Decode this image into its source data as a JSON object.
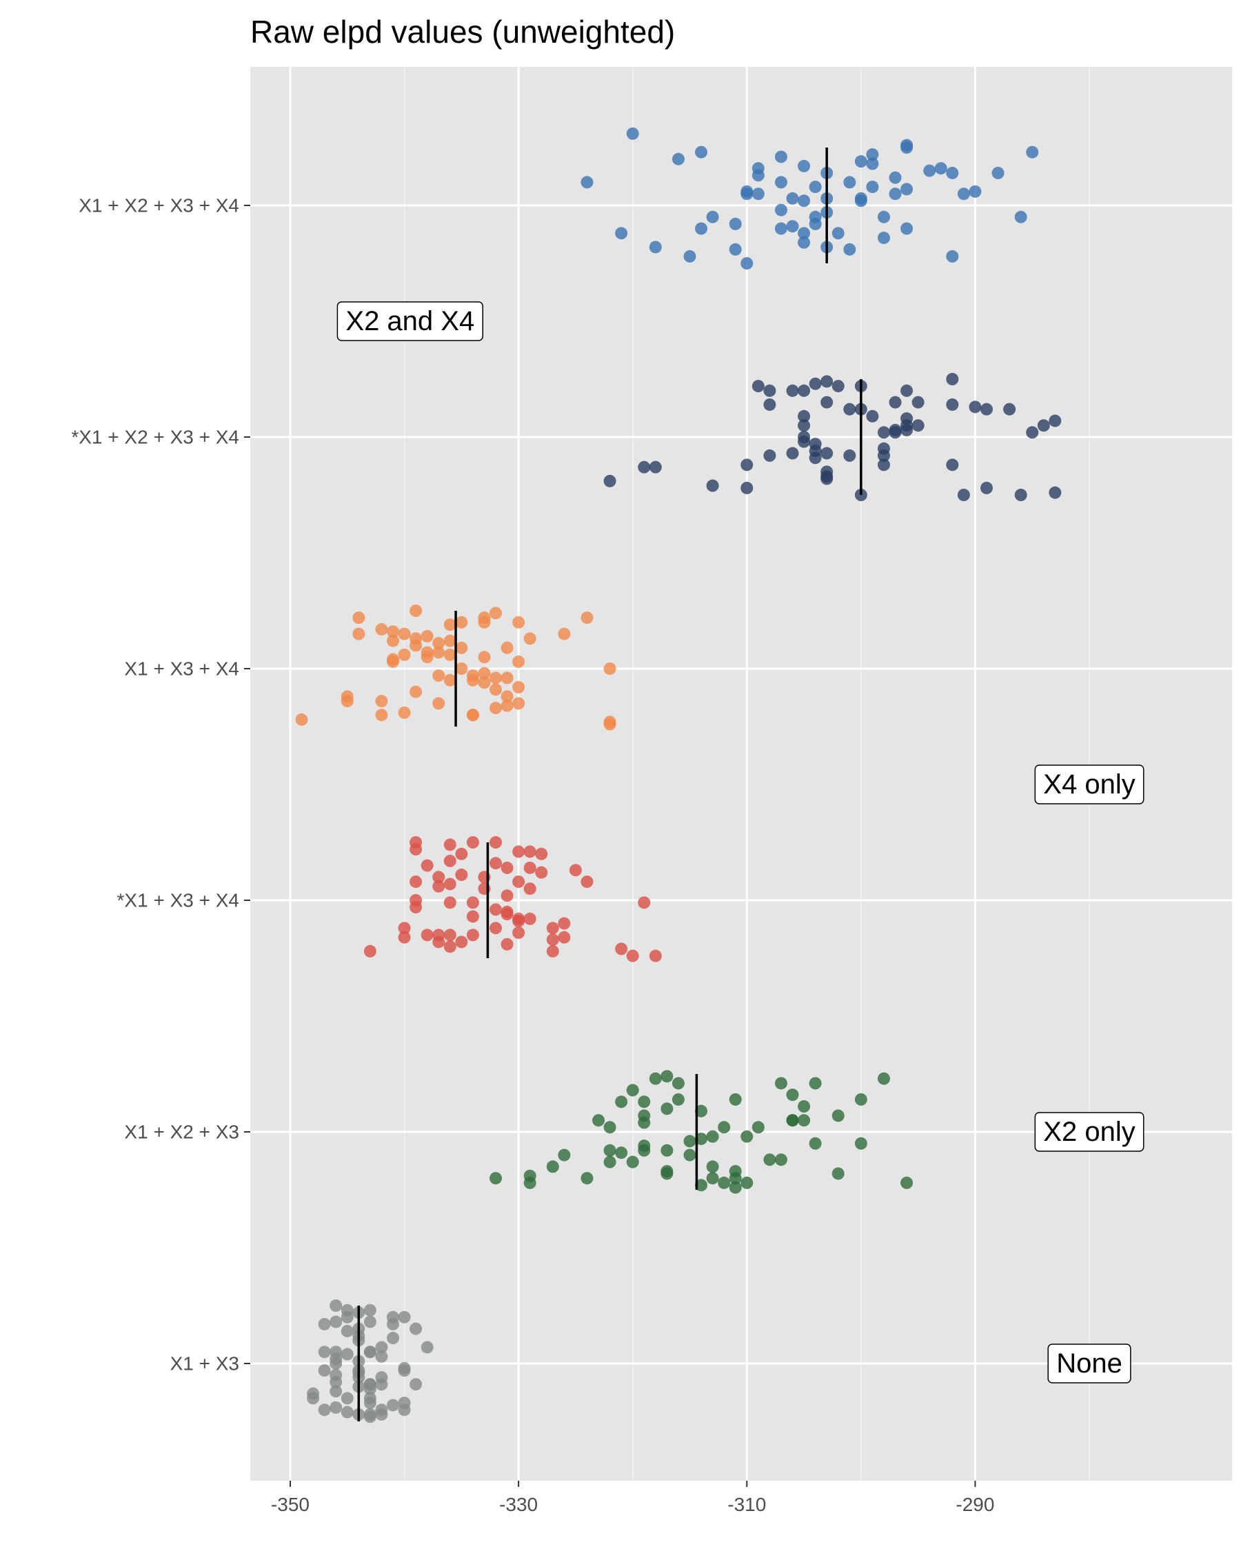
{
  "chart_data": {
    "type": "scatter",
    "title": "Raw elpd values (unweighted)",
    "xlabel": "",
    "ylabel": "",
    "xlim": [
      -353.5,
      -267.5
    ],
    "x_ticks": [
      -350,
      -330,
      -310,
      -290
    ],
    "x_tick_labels": [
      "-350",
      "-330",
      "-310",
      "-290"
    ],
    "grid": true,
    "legend": "none",
    "categories": [
      "X1 + X2 + X3 + X4",
      "*X1 + X2 + X3 + X4",
      "X1 + X3 + X4",
      "*X1 + X3 + X4",
      "X1 + X2 + X3",
      "X1 + X3"
    ],
    "colors": [
      "#3a73b3",
      "#2b3e63",
      "#f0884a",
      "#d94f45",
      "#2e6b3a",
      "#858a8a"
    ],
    "means": [
      -303.0,
      -300.0,
      -335.5,
      -332.7,
      -314.4,
      -344.0
    ],
    "annotations": [
      {
        "text": "X2 and X4",
        "x": -339.5,
        "y": 4.5
      },
      {
        "text": "X4 only",
        "x": -280.0,
        "y": 2.5
      },
      {
        "text": "X2 only",
        "x": -280.0,
        "y": 1.0
      },
      {
        "text": "None",
        "x": -280.0,
        "y": 0.0
      }
    ],
    "series": [
      {
        "values": [
          -314,
          -320,
          -292,
          -297,
          -285,
          -296,
          -305,
          -309,
          -300,
          -304,
          -296,
          -294,
          -307,
          -301,
          -303,
          -306,
          -315,
          -303,
          -302,
          -304,
          -305,
          -310,
          -297,
          -299,
          -293,
          -309,
          -307,
          -305,
          -307,
          -303,
          -321,
          -300,
          -292,
          -314,
          -310,
          -316,
          -305,
          -298,
          -307,
          -313,
          -296,
          -290,
          -286,
          -301,
          -291,
          -309,
          -288,
          -311,
          -324,
          -318,
          -299,
          -303,
          -296,
          -300,
          -299,
          -306,
          -310,
          -311,
          -298,
          -304
        ],
        "jitter": [
          0.23,
          0.31,
          0.14,
          0.05,
          0.23,
          0.25,
          0.17,
          0.16,
          0.19,
          -0.08,
          0.07,
          0.15,
          0.21,
          0.1,
          -0.18,
          0.03,
          -0.22,
          -0.03,
          -0.12,
          -0.05,
          0.02,
          -0.25,
          0.12,
          0.08,
          0.16,
          0.13,
          -0.1,
          -0.16,
          0.1,
          0.14,
          -0.12,
          0.02,
          -0.22,
          -0.1,
          0.05,
          0.2,
          -0.12,
          -0.14,
          -0.02,
          -0.05,
          -0.1,
          0.06,
          -0.05,
          -0.19,
          0.05,
          0.05,
          0.14,
          -0.08,
          0.1,
          -0.18,
          0.18,
          0.03,
          0.26,
          0.03,
          0.22,
          -0.09,
          0.06,
          -0.19,
          -0.05,
          0.08
        ]
      },
      {
        "values": [
          -303,
          -292,
          -304,
          -306,
          -309,
          -305,
          -296,
          -287,
          -300,
          -318,
          -297,
          -308,
          -308,
          -302,
          -303,
          -295,
          -283,
          -296,
          -305,
          -299,
          -301,
          -300,
          -292,
          -290,
          -305,
          -284,
          -295,
          -296,
          -289,
          -296,
          -322,
          -319,
          -310,
          -301,
          -303,
          -304,
          -310,
          -313,
          -292,
          -303,
          -303,
          -306,
          -308,
          -304,
          -303,
          -298,
          -298,
          -283,
          -300,
          -305,
          -298,
          -304,
          -298,
          -291,
          -286,
          -297,
          -297,
          -289,
          -305,
          -285
        ],
        "jitter": [
          0.24,
          0.25,
          0.23,
          0.2,
          0.22,
          0.2,
          0.2,
          0.12,
          0.22,
          -0.13,
          0.15,
          0.14,
          0.2,
          0.22,
          0.15,
          0.15,
          0.07,
          0.08,
          0.09,
          0.09,
          0.12,
          0.12,
          0.14,
          0.13,
          0.05,
          0.05,
          0.05,
          0.03,
          0.12,
          0.05,
          -0.19,
          -0.13,
          -0.12,
          -0.08,
          -0.07,
          -0.09,
          -0.22,
          -0.21,
          -0.12,
          -0.15,
          -0.17,
          -0.07,
          -0.08,
          -0.06,
          -0.18,
          -0.08,
          0.02,
          -0.24,
          -0.25,
          -0.02,
          -0.05,
          -0.03,
          -0.12,
          -0.25,
          -0.25,
          0.03,
          0.02,
          -0.22,
          0.0,
          0.02
        ],
        "dummy": null
      },
      {
        "values": [
          -332,
          -324,
          -336,
          -344,
          -336,
          -342,
          -339,
          -338,
          -340,
          -329,
          -326,
          -336,
          -339,
          -338,
          -331,
          -333,
          -332,
          -330,
          -330,
          -333,
          -338,
          -337,
          -335,
          -341,
          -341,
          -344,
          -349,
          -334,
          -337,
          -340,
          -335,
          -334,
          -333,
          -331,
          -331,
          -330,
          -332,
          -333,
          -337,
          -340,
          -345,
          -345,
          -342,
          -330,
          -331,
          -334,
          -334,
          -342,
          -341,
          -341,
          -322,
          -322,
          -322,
          -335,
          -333,
          -339,
          -337,
          -336,
          -332,
          -339
        ],
        "jitter": [
          0.24,
          0.22,
          0.19,
          0.22,
          0.12,
          0.17,
          0.13,
          0.14,
          0.15,
          0.13,
          0.15,
          0.06,
          0.1,
          0.05,
          0.09,
          0.05,
          -0.04,
          0.03,
          0.2,
          0.2,
          0.07,
          0.07,
          0.2,
          0.03,
          0.04,
          0.15,
          -0.22,
          -0.03,
          -0.03,
          0.06,
          0.0,
          -0.05,
          -0.02,
          -0.04,
          -0.12,
          -0.08,
          -0.09,
          -0.06,
          -0.15,
          -0.19,
          -0.12,
          -0.14,
          -0.2,
          -0.15,
          -0.16,
          -0.2,
          -0.2,
          -0.14,
          0.16,
          0.12,
          0.0,
          -0.24,
          -0.23,
          0.09,
          0.22,
          0.25,
          0.11,
          -0.05,
          -0.17,
          -0.1
        ],
        "dummy": null
      },
      {
        "values": [
          -339,
          -336,
          -334,
          -330,
          -329,
          -325,
          -320,
          -318,
          -328,
          -324,
          -328,
          -332,
          -335,
          -329,
          -331,
          -331,
          -329,
          -332,
          -331,
          -327,
          -330,
          -331,
          -333,
          -337,
          -335,
          -339,
          -340,
          -339,
          -336,
          -334,
          -330,
          -338,
          -334,
          -327,
          -326,
          -330,
          -332,
          -329,
          -319,
          -321,
          -327,
          -331,
          -335,
          -336,
          -337,
          -343,
          -340,
          -337,
          -339,
          -336,
          -336,
          -339,
          -332,
          -333,
          -334,
          -336,
          -330,
          -326,
          -338,
          -337
        ],
        "jitter": [
          0.25,
          0.24,
          0.25,
          0.21,
          0.21,
          0.13,
          -0.24,
          -0.24,
          0.2,
          0.08,
          0.12,
          0.16,
          0.2,
          0.14,
          0.14,
          0.02,
          0.05,
          -0.04,
          -0.06,
          -0.12,
          -0.14,
          -0.05,
          0.05,
          0.06,
          0.11,
          0.08,
          -0.12,
          -0.03,
          -0.01,
          -0.01,
          0.08,
          -0.15,
          -0.15,
          -0.17,
          -0.1,
          -0.09,
          -0.12,
          -0.08,
          -0.01,
          -0.21,
          -0.22,
          -0.19,
          -0.18,
          -0.15,
          -0.18,
          -0.22,
          -0.16,
          0.1,
          0.22,
          0.17,
          0.07,
          0.0,
          0.25,
          0.1,
          -0.07,
          -0.2,
          -0.08,
          -0.16,
          0.15,
          -0.15
        ],
        "dummy": null
      },
      {
        "values": [
          -317,
          -316,
          -318,
          -306,
          -304,
          -316,
          -311,
          -307,
          -298,
          -305,
          -302,
          -300,
          -306,
          -305,
          -306,
          -320,
          -319,
          -314,
          -317,
          -319,
          -309,
          -312,
          -314,
          -310,
          -304,
          -313,
          -311,
          -307,
          -320,
          -315,
          -322,
          -321,
          -322,
          -326,
          -324,
          -327,
          -332,
          -329,
          -329,
          -319,
          -319,
          -313,
          -317,
          -314,
          -317,
          -302,
          -300,
          -296,
          -315,
          -311,
          -311,
          -312,
          -310,
          -313,
          -319,
          -322,
          -317,
          -323,
          -321,
          -308
        ],
        "jitter": [
          0.24,
          0.21,
          0.23,
          0.16,
          0.21,
          0.14,
          0.14,
          0.21,
          0.23,
          0.11,
          0.07,
          0.14,
          0.05,
          0.05,
          0.05,
          0.18,
          0.13,
          0.09,
          0.1,
          0.04,
          0.02,
          0.02,
          -0.03,
          -0.02,
          -0.05,
          -0.02,
          -0.17,
          -0.12,
          -0.13,
          -0.1,
          -0.08,
          -0.09,
          -0.13,
          -0.1,
          -0.2,
          -0.15,
          -0.2,
          -0.19,
          -0.22,
          -0.08,
          -0.06,
          -0.15,
          -0.17,
          -0.23,
          -0.18,
          -0.18,
          -0.05,
          -0.22,
          -0.04,
          -0.24,
          -0.2,
          -0.22,
          -0.22,
          -0.2,
          0.07,
          0.02,
          -0.08,
          0.05,
          0.13,
          -0.12
        ],
        "dummy": null
      },
      {
        "values": [
          -346,
          -345,
          -344,
          -341,
          -343,
          -345,
          -343,
          -340,
          -339,
          -344,
          -344,
          -345,
          -347,
          -342,
          -341,
          -338,
          -343,
          -346,
          -343,
          -347,
          -342,
          -340,
          -344,
          -346,
          -345,
          -347,
          -348,
          -342,
          -340,
          -344,
          -343,
          -343,
          -344,
          -342,
          -346,
          -343,
          -348,
          -346,
          -347,
          -340,
          -339,
          -345,
          -344,
          -343,
          -341,
          -342,
          -345,
          -343,
          -346,
          -343,
          -344,
          -344,
          -346,
          -341,
          -340,
          -342,
          -346,
          -344,
          -346,
          -343
        ],
        "jitter": [
          0.25,
          0.23,
          0.22,
          0.2,
          0.18,
          0.2,
          0.23,
          0.2,
          0.15,
          0.15,
          0.1,
          0.14,
          0.17,
          0.07,
          0.17,
          0.07,
          0.05,
          0.05,
          0.05,
          0.05,
          0.03,
          -0.02,
          0.01,
          0.02,
          0.04,
          -0.03,
          -0.13,
          -0.06,
          -0.03,
          -0.03,
          -0.09,
          -0.09,
          -0.06,
          -0.09,
          -0.12,
          -0.15,
          -0.15,
          -0.19,
          -0.2,
          -0.17,
          -0.09,
          -0.15,
          -0.22,
          -0.23,
          -0.18,
          -0.2,
          -0.21,
          -0.17,
          -0.08,
          -0.11,
          -0.04,
          0.12,
          0.0,
          0.11,
          -0.2,
          -0.22,
          -0.05,
          -0.1,
          0.18,
          -0.22
        ],
        "dummy": null
      }
    ]
  }
}
